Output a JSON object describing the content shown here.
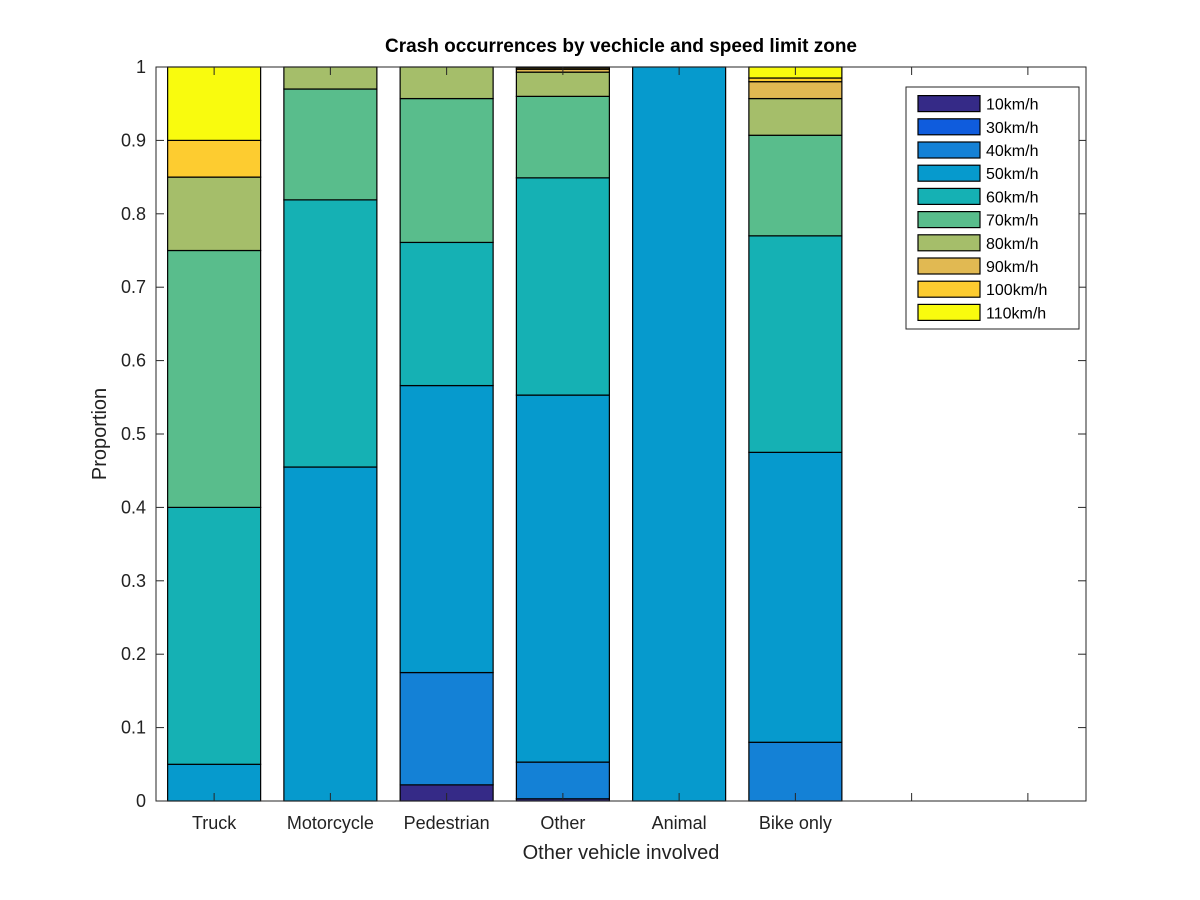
{
  "chart_data": {
    "type": "bar",
    "stacked": true,
    "title": "Crash occurrences by vechicle and speed limit zone",
    "xlabel": "Other vehicle involved",
    "ylabel": "Proportion",
    "ylim": [
      0,
      1
    ],
    "xlim": [
      0.5,
      8.5
    ],
    "yticks": [
      0,
      0.1,
      0.2,
      0.3,
      0.4,
      0.5,
      0.6,
      0.7,
      0.8,
      0.9,
      1
    ],
    "ytick_labels": [
      "0",
      "0.1",
      "0.2",
      "0.3",
      "0.4",
      "0.5",
      "0.6",
      "0.7",
      "0.8",
      "0.9",
      "1"
    ],
    "categories": [
      "Truck",
      "Motorcycle",
      "Pedestrian",
      "Other",
      "Animal",
      "Bike only"
    ],
    "legend_position": "top-right",
    "grid": false,
    "series": [
      {
        "name": "10km/h",
        "color": "#352a87",
        "values": [
          0,
          0,
          0.022,
          0.003,
          0,
          0
        ]
      },
      {
        "name": "30km/h",
        "color": "#0f5cdd",
        "values": [
          0,
          0,
          0,
          0,
          0,
          0
        ]
      },
      {
        "name": "40km/h",
        "color": "#1481d6",
        "values": [
          0,
          0,
          0.153,
          0.05,
          0,
          0.08
        ]
      },
      {
        "name": "50km/h",
        "color": "#069acd",
        "values": [
          0.05,
          0.455,
          0.391,
          0.5,
          1.0,
          0.395
        ]
      },
      {
        "name": "60km/h",
        "color": "#15b1b4",
        "values": [
          0.35,
          0.364,
          0.195,
          0.296,
          0,
          0.295
        ]
      },
      {
        "name": "70km/h",
        "color": "#59bd8c",
        "values": [
          0.35,
          0.151,
          0.196,
          0.111,
          0,
          0.137
        ]
      },
      {
        "name": "80km/h",
        "color": "#a5be6a",
        "values": [
          0.1,
          0.03,
          0.043,
          0.033,
          0,
          0.05
        ]
      },
      {
        "name": "90km/h",
        "color": "#e1b952",
        "values": [
          0,
          0,
          0,
          0.004,
          0,
          0.023
        ]
      },
      {
        "name": "100km/h",
        "color": "#fdcc30",
        "values": [
          0.05,
          0,
          0,
          0.002,
          0,
          0.005
        ]
      },
      {
        "name": "110km/h",
        "color": "#f9fb0e",
        "values": [
          0.1,
          0,
          0,
          0.001,
          0,
          0.015
        ]
      }
    ]
  }
}
